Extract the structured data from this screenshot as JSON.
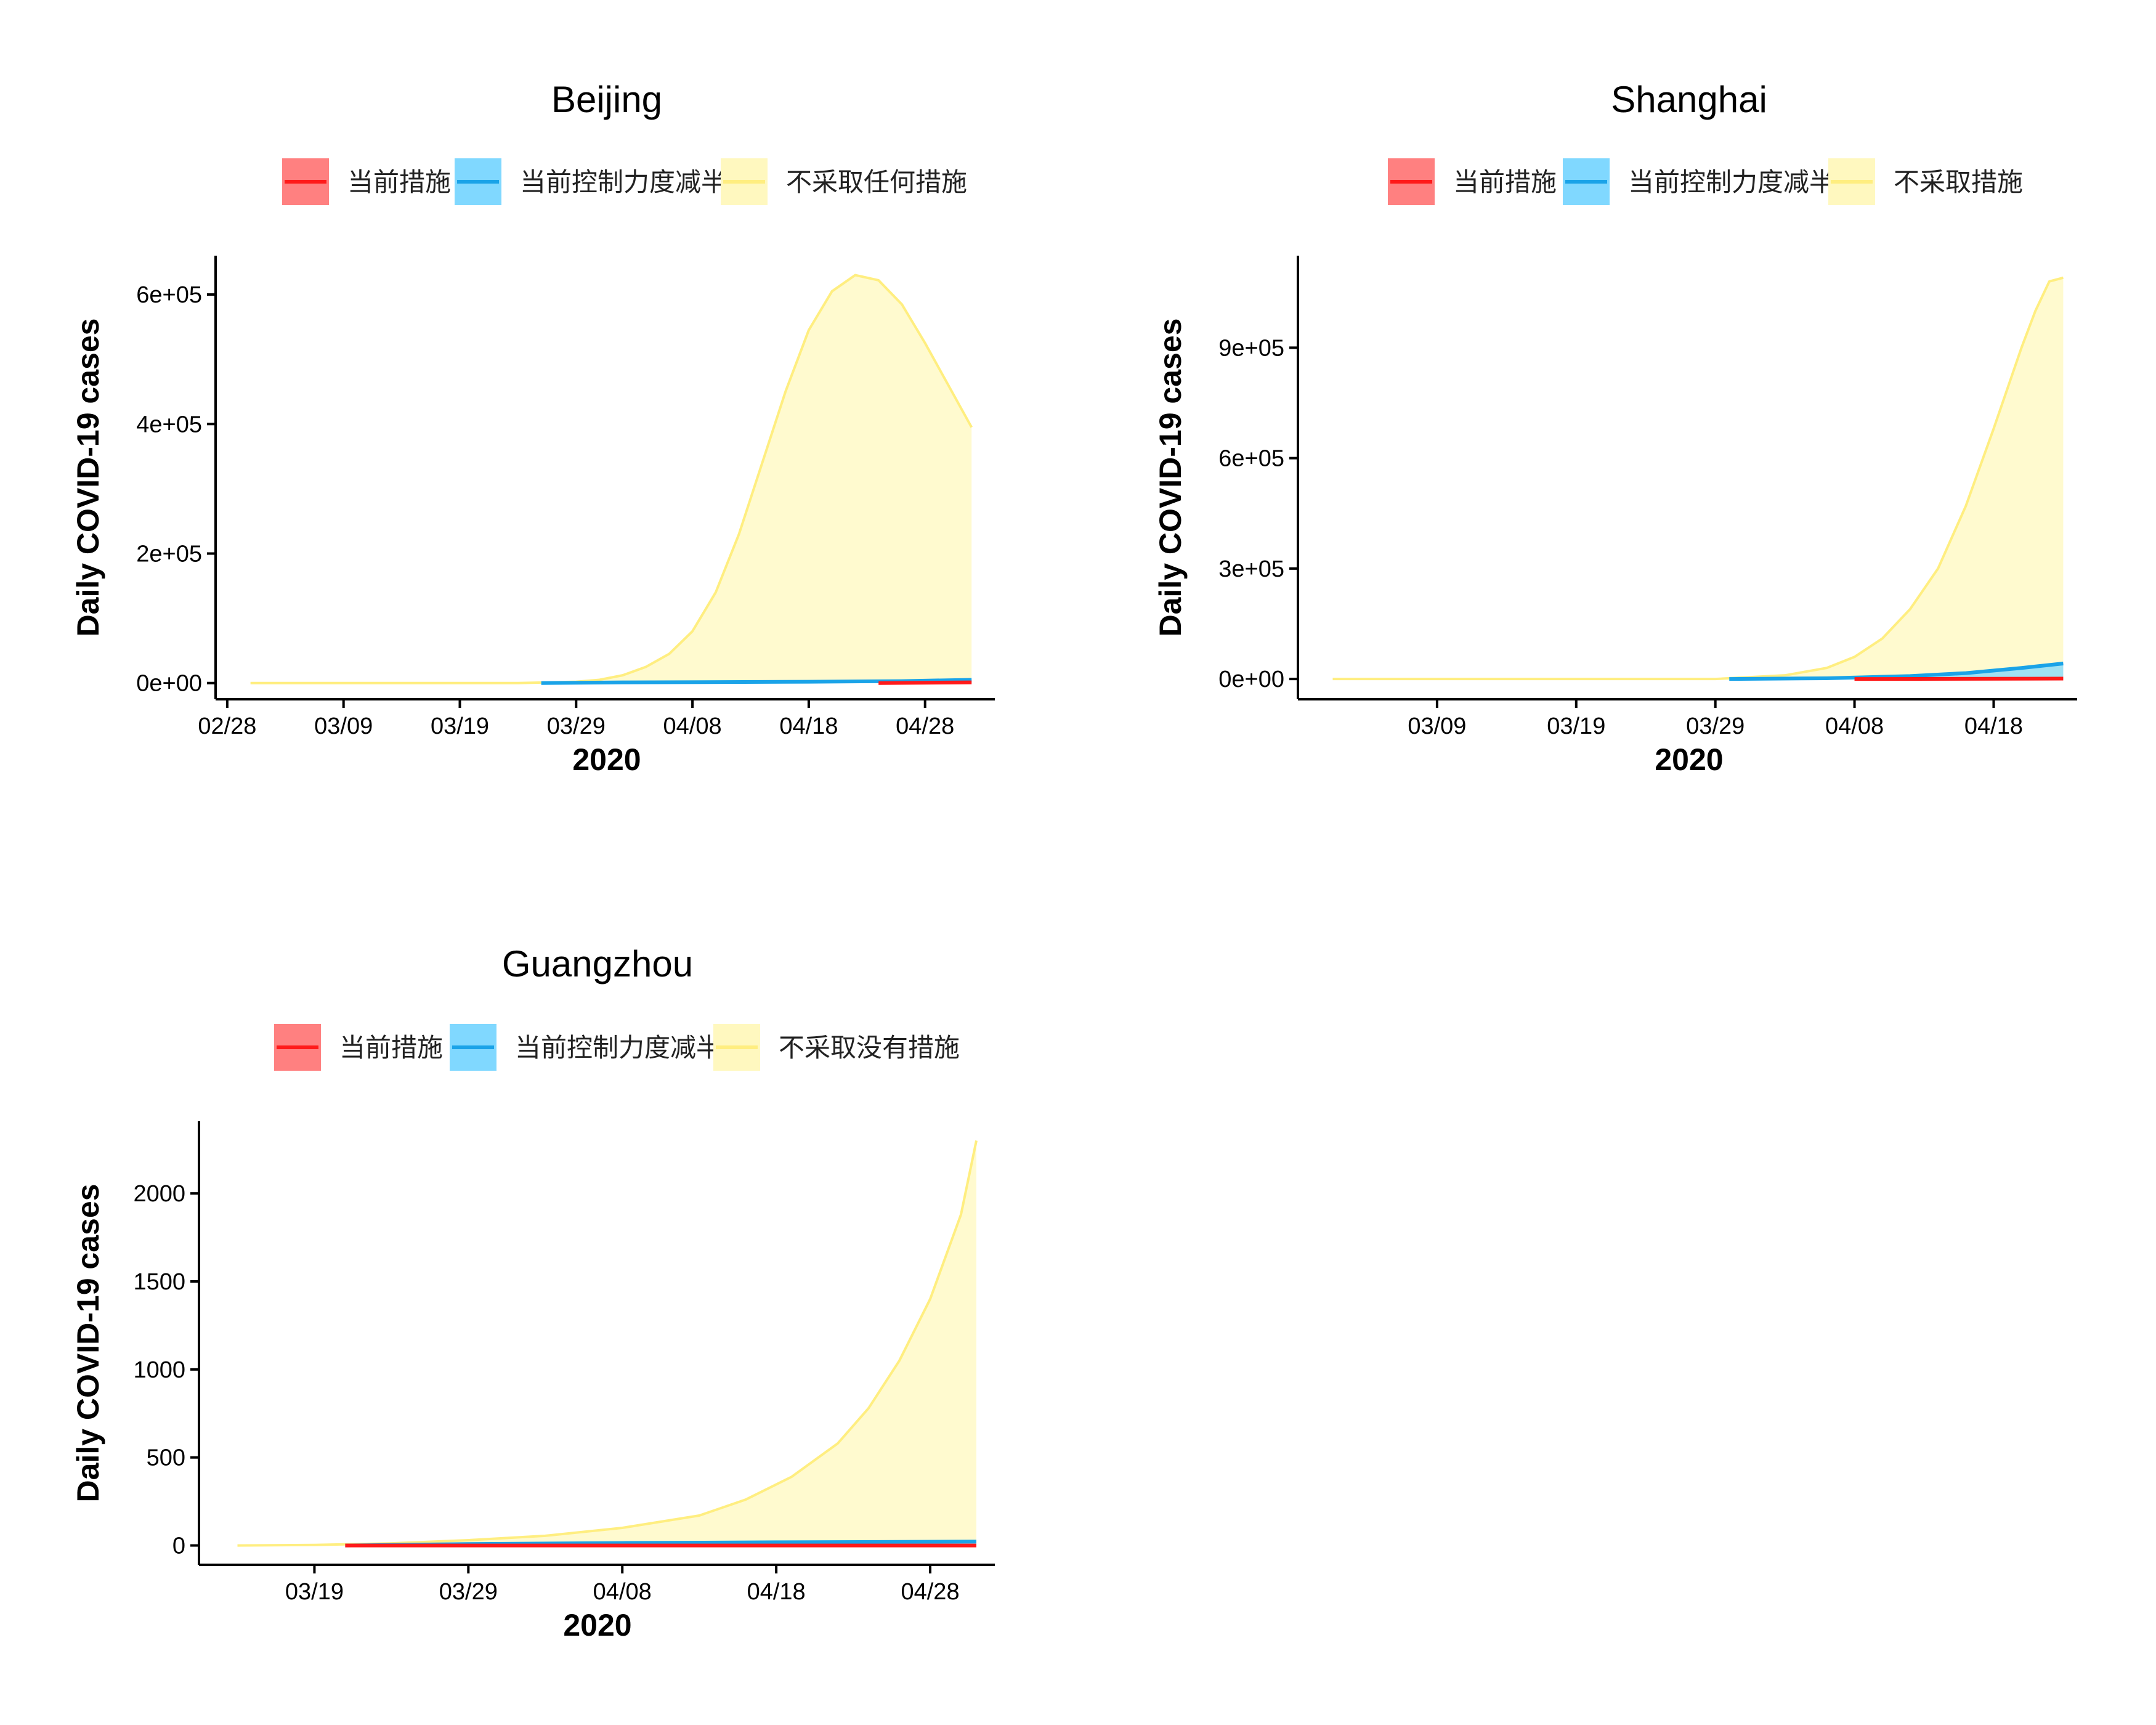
{
  "colors": {
    "current": "#ff1a1a",
    "current_fill": "#ff8080",
    "half": "#1aa3e8",
    "half_fill": "#80d8ff",
    "none": "#ffee80",
    "none_fill": "#fff8bf"
  },
  "chart_data": [
    {
      "type": "area",
      "title": "Beijing",
      "xlabel": "2020",
      "ylabel": "Daily COVID-19 cases",
      "x_ticks": [
        "02/28",
        "03/09",
        "03/19",
        "03/29",
        "04/08",
        "04/18",
        "04/28"
      ],
      "x_tick_days": [
        0,
        10,
        20,
        30,
        40,
        50,
        60
      ],
      "x_range_days": [
        -1,
        66
      ],
      "y_ticks": [
        "0e+00",
        "2e+05",
        "4e+05",
        "6e+05"
      ],
      "y_tick_values": [
        0,
        200000,
        400000,
        600000
      ],
      "ylim": [
        -25000,
        660000
      ],
      "legend": [
        "当前措施",
        "当前控制力度减半",
        "不采取任何措施"
      ],
      "series": [
        {
          "key": "none",
          "x": [
            2,
            25,
            30,
            32,
            34,
            36,
            38,
            40,
            42,
            44,
            46,
            48,
            50,
            52,
            54,
            56,
            58,
            60,
            62,
            64
          ],
          "values": [
            0,
            0,
            2000,
            5000,
            12000,
            25000,
            45000,
            80000,
            140000,
            230000,
            340000,
            450000,
            545000,
            605000,
            630000,
            622000,
            585000,
            525000,
            460000,
            395000
          ]
        },
        {
          "key": "half",
          "x": [
            27,
            34,
            50,
            58,
            64
          ],
          "values": [
            0,
            1000,
            2000,
            3000,
            5000
          ]
        },
        {
          "key": "current",
          "x": [
            56,
            64
          ],
          "values": [
            0,
            1000
          ]
        }
      ]
    },
    {
      "type": "area",
      "title": "Shanghai",
      "xlabel": "2020",
      "ylabel": "Daily COVID-19 cases",
      "x_ticks": [
        "03/09",
        "03/19",
        "03/29",
        "04/08",
        "04/18"
      ],
      "x_tick_days": [
        10,
        20,
        30,
        40,
        50
      ],
      "x_range_days": [
        0,
        56
      ],
      "y_ticks": [
        "0e+00",
        "3e+05",
        "6e+05",
        "9e+05"
      ],
      "y_tick_values": [
        0,
        300000,
        600000,
        900000
      ],
      "ylim": [
        -55000,
        1150000
      ],
      "legend": [
        "当前措施",
        "当前控制力度减半",
        "不采取措施"
      ],
      "series": [
        {
          "key": "none",
          "x": [
            2.5,
            30,
            35,
            38,
            40,
            42,
            44,
            46,
            48,
            50,
            52,
            53,
            54,
            55
          ],
          "values": [
            0,
            0,
            10000,
            30000,
            60000,
            110000,
            190000,
            300000,
            470000,
            680000,
            900000,
            1000000,
            1080000,
            1090000
          ]
        },
        {
          "key": "half",
          "x": [
            31,
            38,
            44,
            48,
            52,
            55
          ],
          "values": [
            0,
            2000,
            8000,
            16000,
            30000,
            42000
          ]
        },
        {
          "key": "current",
          "x": [
            40,
            55
          ],
          "values": [
            0,
            1000
          ]
        }
      ]
    },
    {
      "type": "area",
      "title": "Guangzhou",
      "xlabel": "2020",
      "ylabel": "Daily COVID-19 cases",
      "x_ticks": [
        "03/19",
        "03/29",
        "04/08",
        "04/18",
        "04/28"
      ],
      "x_tick_days": [
        20,
        30,
        40,
        50,
        60
      ],
      "x_range_days": [
        12.5,
        64.2
      ],
      "y_ticks": [
        "0",
        "500",
        "1000",
        "1500",
        "2000"
      ],
      "y_tick_values": [
        0,
        500,
        1000,
        1500,
        2000
      ],
      "ylim": [
        -110,
        2410
      ],
      "legend": [
        "当前措施",
        "当前控制力度减半",
        "不采取没有措施"
      ],
      "series": [
        {
          "key": "none",
          "x": [
            15,
            20,
            25,
            30,
            35,
            40,
            45,
            48,
            51,
            54,
            56,
            58,
            60,
            62,
            63
          ],
          "values": [
            0,
            3,
            12,
            30,
            55,
            100,
            170,
            260,
            390,
            580,
            780,
            1050,
            1400,
            1880,
            2300
          ]
        },
        {
          "key": "half",
          "x": [
            22,
            30,
            40,
            50,
            63
          ],
          "values": [
            0,
            8,
            14,
            18,
            22
          ]
        },
        {
          "key": "current",
          "x": [
            22,
            63
          ],
          "values": [
            0,
            0
          ]
        }
      ]
    }
  ]
}
